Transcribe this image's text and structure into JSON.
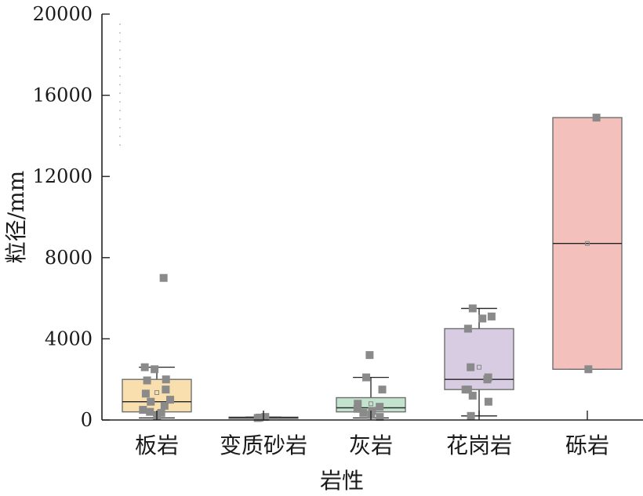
{
  "chart_data": {
    "type": "box",
    "xlabel": "岩性",
    "ylabel": "粒径/mm",
    "ylim": [
      0,
      20000
    ],
    "yticks": [
      0,
      4000,
      8000,
      12000,
      16000,
      20000
    ],
    "grid": false,
    "categories": [
      "板岩",
      "变质砂岩",
      "灰岩",
      "花岗岩",
      "砾岩"
    ],
    "colors": [
      "#f9dfae",
      "#c9d7c9",
      "#c3e3cf",
      "#d8cce3",
      "#f4c0bc"
    ],
    "point_color": "#8a8a8a",
    "boxes": [
      {
        "category": "板岩",
        "q1": 400,
        "median": 900,
        "q3": 2000,
        "whisker_low": 100,
        "whisker_high": 2600,
        "mean": 1350,
        "points": [
          7000,
          2600,
          2500,
          2000,
          1950,
          1500,
          1300,
          1000,
          900,
          700,
          500,
          400,
          350,
          200
        ]
      },
      {
        "category": "变质砂岩",
        "q1": 100,
        "median": 120,
        "q3": 140,
        "whisker_low": 100,
        "whisker_high": 150,
        "mean": 120,
        "points": [
          150,
          120,
          100
        ]
      },
      {
        "category": "灰岩",
        "q1": 400,
        "median": 600,
        "q3": 1100,
        "whisker_low": 100,
        "whisker_high": 2100,
        "mean": 800,
        "points": [
          3200,
          2100,
          1500,
          800,
          650,
          550,
          450,
          350,
          250,
          150
        ]
      },
      {
        "category": "花岗岩",
        "q1": 1500,
        "median": 2000,
        "q3": 4500,
        "whisker_low": 200,
        "whisker_high": 5500,
        "mean": 2600,
        "points": [
          5500,
          5100,
          5000,
          4500,
          2600,
          2100,
          2000,
          1500,
          1500,
          1200,
          900,
          200
        ]
      },
      {
        "category": "砾岩",
        "q1": 2500,
        "median": 8700,
        "q3": 14900,
        "whisker_low": 2500,
        "whisker_high": 14900,
        "mean": 8700,
        "points": [
          14900,
          2500
        ]
      }
    ]
  }
}
